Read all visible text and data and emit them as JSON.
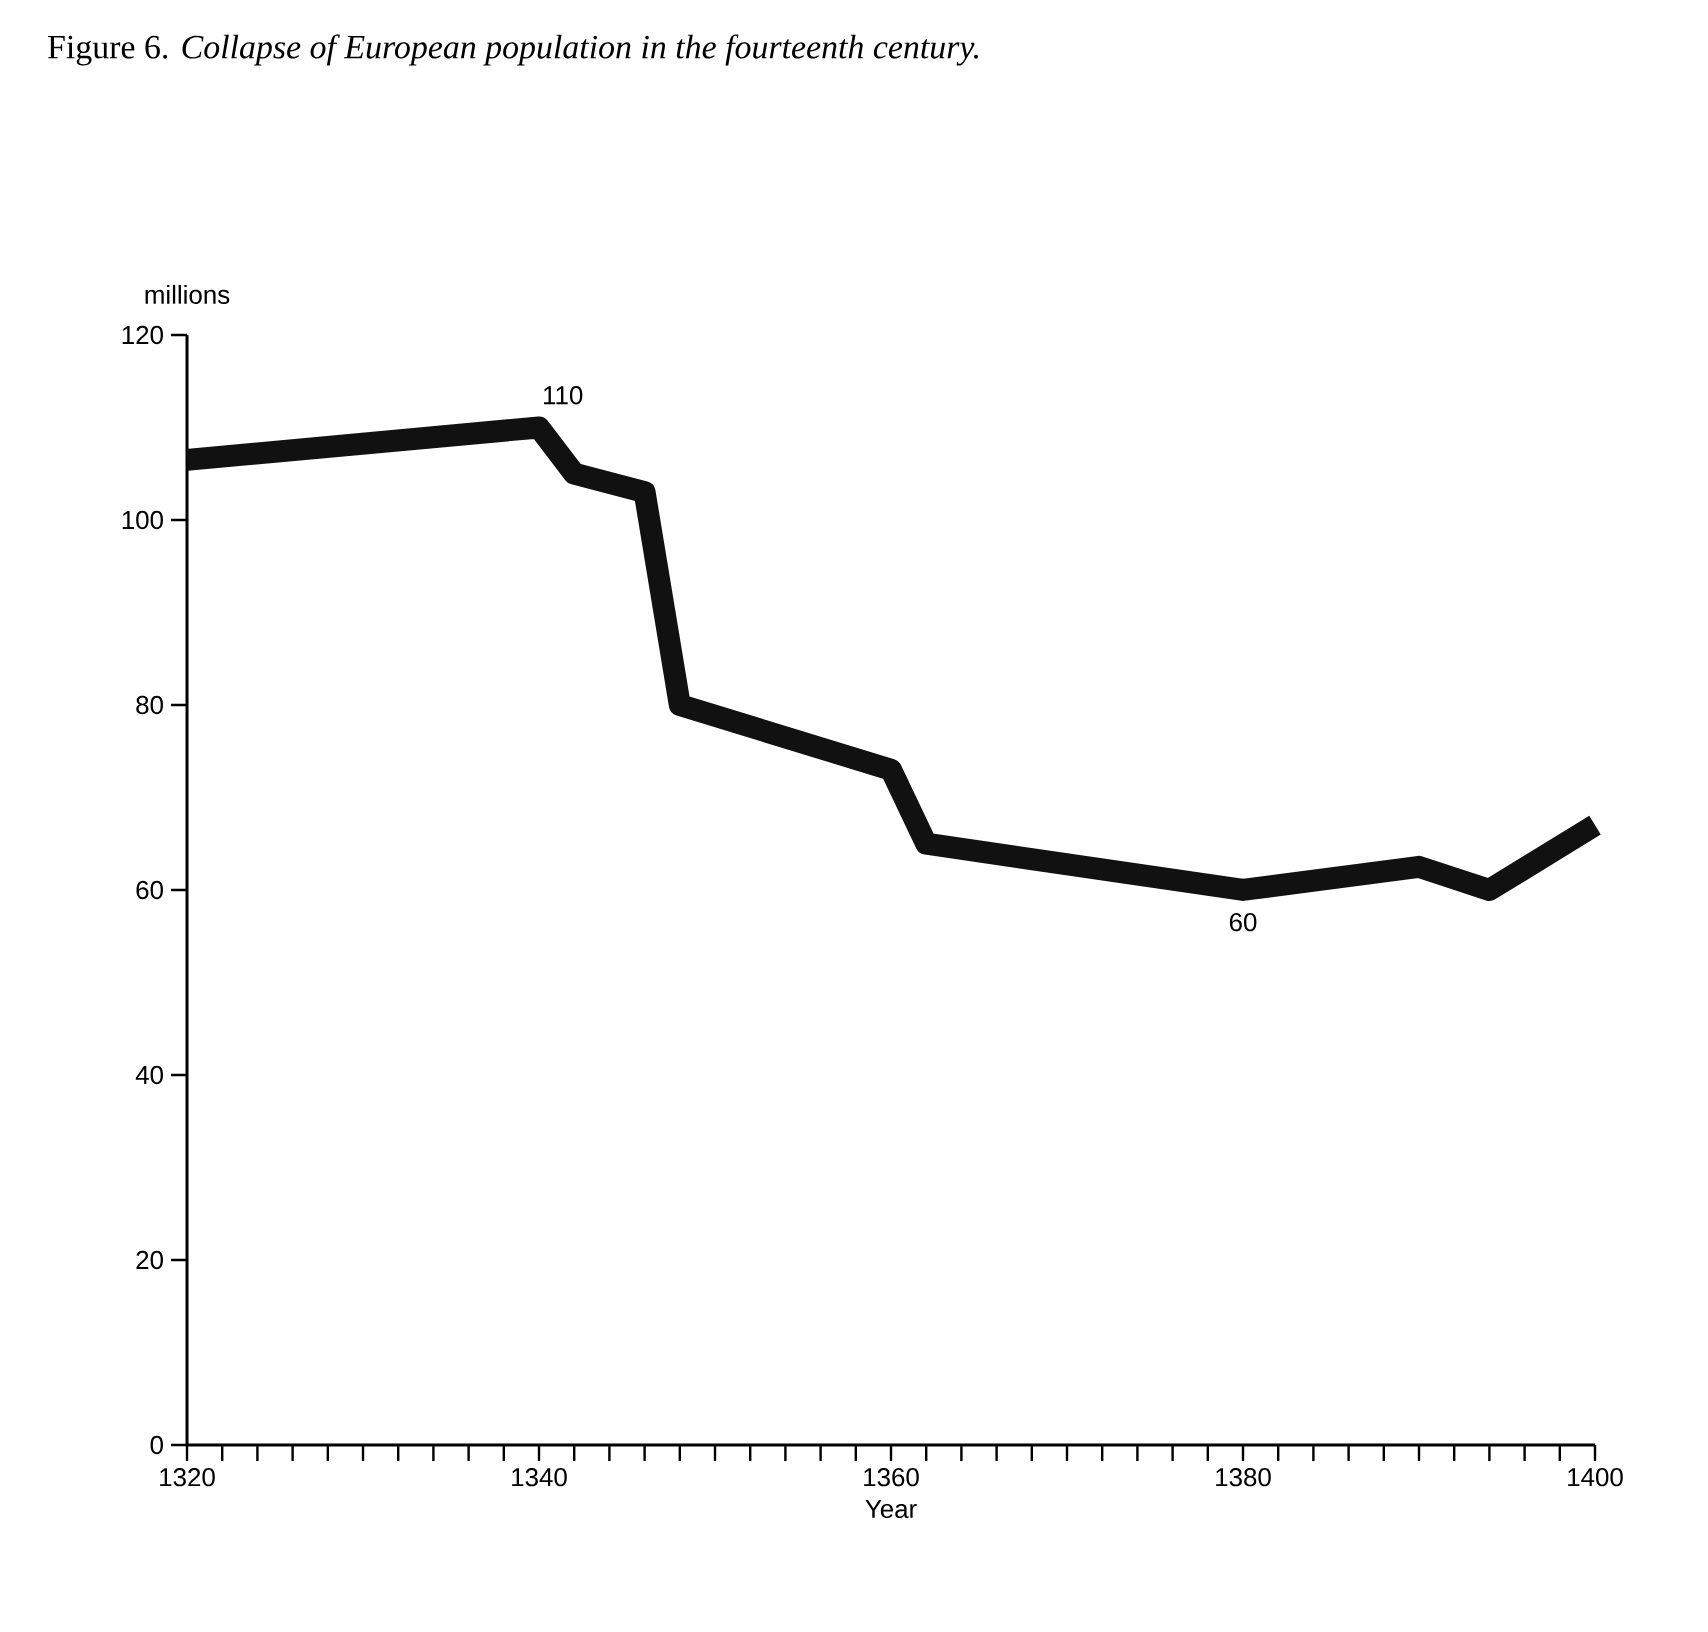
{
  "chart_data": {
    "type": "line",
    "title": "Figure 6. *Collapse of European population in the fourteenth century.*",
    "xlabel": "Year",
    "ylabel": "millions",
    "x": [
      1320,
      1340,
      1342,
      1346,
      1348,
      1360,
      1362,
      1380,
      1390,
      1394,
      1400
    ],
    "series": [
      {
        "color": "#111111",
        "values": [
          106.5,
          110,
          105,
          103,
          80,
          73,
          65,
          60,
          62.5,
          60,
          67
        ]
      }
    ],
    "xlim": [
      1320,
      1400
    ],
    "ylim": [
      0,
      120
    ],
    "xticks": [
      1320,
      {
        "value": 1322,
        "label": null
      },
      {
        "value": 1324,
        "label": null
      },
      {
        "value": 1326,
        "label": null
      },
      {
        "value": 1328,
        "label": null
      },
      {
        "value": 1330,
        "label": null
      },
      {
        "value": 1332,
        "label": null
      },
      {
        "value": 1334,
        "label": null
      },
      {
        "value": 1336,
        "label": null
      },
      {
        "value": 1338,
        "label": null
      },
      1340,
      {
        "value": 1342,
        "label": null
      },
      {
        "value": 1344,
        "label": null
      },
      {
        "value": 1346,
        "label": null
      },
      {
        "value": 1348,
        "label": null
      },
      {
        "value": 1350,
        "label": null
      },
      {
        "value": 1352,
        "label": null
      },
      {
        "value": 1354,
        "label": null
      },
      {
        "value": 1356,
        "label": null
      },
      {
        "value": 1358,
        "label": null
      },
      1360,
      {
        "value": 1362,
        "label": null
      },
      {
        "value": 1364,
        "label": null
      },
      {
        "value": 1366,
        "label": null
      },
      {
        "value": 1368,
        "label": null
      },
      {
        "value": 1370,
        "label": null
      },
      {
        "value": 1372,
        "label": null
      },
      {
        "value": 1374,
        "label": null
      },
      {
        "value": 1376,
        "label": null
      },
      {
        "value": 1378,
        "label": null
      },
      1380,
      {
        "value": 1382,
        "label": null
      },
      {
        "value": 1384,
        "label": null
      },
      {
        "value": 1386,
        "label": null
      },
      {
        "value": 1388,
        "label": null
      },
      {
        "value": 1390,
        "label": null
      },
      {
        "value": 1392,
        "label": null
      },
      {
        "value": 1394,
        "label": null
      },
      {
        "value": 1396,
        "label": null
      },
      {
        "value": 1398,
        "label": null
      },
      1400
    ],
    "yticks": [
      0,
      20,
      40,
      60,
      80,
      100,
      120
    ],
    "marker": "none",
    "line_style": "solid",
    "annotations": [
      {
        "text": "110",
        "x": 1340,
        "y": 110
      },
      {
        "text": "60",
        "x": 1380,
        "y": 60
      }
    ]
  }
}
